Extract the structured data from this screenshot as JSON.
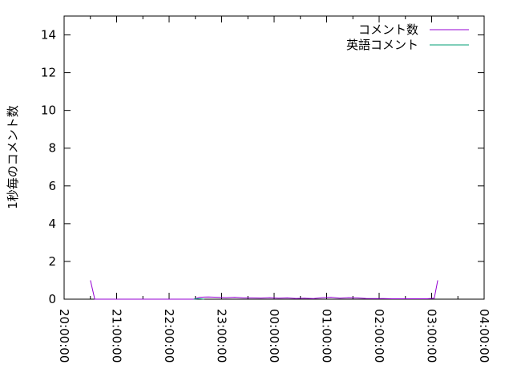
{
  "chart_data": {
    "type": "line",
    "title": "",
    "xlabel": "",
    "ylabel": "1秒毎のコメント数",
    "xlim": [
      "20:00:00",
      "04:00:00"
    ],
    "ylim": [
      0,
      15
    ],
    "x_ticks": [
      "20:00:00",
      "21:00:00",
      "22:00:00",
      "23:00:00",
      "00:00:00",
      "01:00:00",
      "02:00:00",
      "03:00:00",
      "04:00:00"
    ],
    "y_ticks": [
      0,
      2,
      4,
      6,
      8,
      10,
      12,
      14
    ],
    "grid": false,
    "legend_position": "top-right",
    "series": [
      {
        "name": "コメント数",
        "color": "#9400d3",
        "x": [
          "20:30:00",
          "20:35:00",
          "22:28:00",
          "22:35:00",
          "22:45:00",
          "22:55:00",
          "23:05:00",
          "23:15:00",
          "23:25:00",
          "23:35:00",
          "23:45:00",
          "23:55:00",
          "00:05:00",
          "00:15:00",
          "00:25:00",
          "00:35:00",
          "00:45:00",
          "00:55:00",
          "01:05:00",
          "01:15:00",
          "01:25:00",
          "01:35:00",
          "01:45:00",
          "01:55:00",
          "02:05:00",
          "02:15:00",
          "02:25:00",
          "02:35:00",
          "02:45:00",
          "02:55:00",
          "03:03:00",
          "03:07:00"
        ],
        "values": [
          1,
          0,
          0,
          0.1,
          0.12,
          0.1,
          0.08,
          0.1,
          0.07,
          0.07,
          0.06,
          0.08,
          0.05,
          0.07,
          0.04,
          0.05,
          0.03,
          0.08,
          0.1,
          0.05,
          0.08,
          0.07,
          0.04,
          0.03,
          0.03,
          0.02,
          0.02,
          0.02,
          0.02,
          0.02,
          0.05,
          1
        ]
      },
      {
        "name": "英語コメント",
        "color": "#009e73",
        "x": [
          "22:28:00",
          "22:33:00",
          "22:36:00",
          "22:40:00"
        ],
        "values": [
          0,
          0.02,
          0.02,
          0
        ]
      }
    ]
  }
}
